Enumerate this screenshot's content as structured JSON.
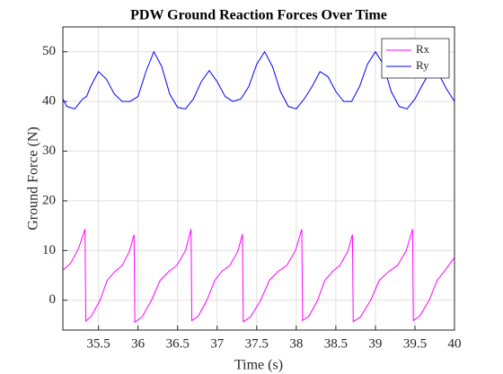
{
  "chart_data": {
    "type": "line",
    "title": "PDW Ground Reaction Forces Over Time",
    "xlabel": "Time (s)",
    "ylabel": "Ground Force (N)",
    "xlim": [
      35.05,
      40
    ],
    "xticks": [
      35.5,
      36,
      36.5,
      37,
      37.5,
      38,
      38.5,
      39,
      39.5,
      40
    ],
    "ylim": [
      -6,
      55
    ],
    "yticks": [
      0,
      10,
      20,
      30,
      40,
      50
    ],
    "grid": true,
    "legend": "northeast",
    "series": [
      {
        "name": "Rx",
        "color": "#ff00ff",
        "x": [
          35.05,
          35.15,
          35.25,
          35.33,
          35.34,
          35.41,
          35.52,
          35.61,
          35.71,
          35.8,
          35.89,
          35.95,
          35.96,
          36.05,
          36.17,
          36.28,
          36.39,
          36.49,
          36.6,
          36.67,
          36.68,
          36.76,
          36.87,
          36.97,
          37.06,
          37.16,
          37.26,
          37.32,
          37.33,
          37.42,
          37.55,
          37.66,
          37.77,
          37.88,
          37.99,
          38.07,
          38.08,
          38.16,
          38.27,
          38.36,
          38.46,
          38.55,
          38.65,
          38.71,
          38.72,
          38.81,
          38.94,
          39.05,
          39.17,
          39.28,
          39.39,
          39.47,
          39.48,
          39.56,
          39.68,
          39.78,
          39.88,
          40
        ],
        "values": [
          6,
          7.5,
          10.5,
          14.3,
          -4.2,
          -3.2,
          0,
          4,
          5.8,
          7,
          9.8,
          13.2,
          -4.4,
          -3.4,
          0,
          4,
          5.8,
          7,
          10,
          14.3,
          -4.1,
          -3.2,
          0,
          4,
          5.8,
          7,
          9.8,
          13.3,
          -4.3,
          -3.4,
          0,
          4,
          5.8,
          7,
          10,
          14.3,
          -4.1,
          -3.2,
          0,
          4,
          5.8,
          7,
          9.8,
          13.2,
          -4.3,
          -3.4,
          0,
          4,
          5.8,
          7,
          10,
          14.3,
          -4.1,
          -3.2,
          0,
          4,
          6,
          8.6
        ]
      },
      {
        "name": "Ry",
        "color": "#0000ff",
        "x": [
          35.05,
          35.1,
          35.2,
          35.3,
          35.35,
          35.4,
          35.5,
          35.6,
          35.7,
          35.8,
          35.9,
          36.0,
          36.1,
          36.2,
          36.3,
          36.4,
          36.5,
          36.6,
          36.7,
          36.8,
          36.9,
          37.0,
          37.1,
          37.2,
          37.3,
          37.4,
          37.5,
          37.6,
          37.7,
          37.8,
          37.9,
          38.0,
          38.1,
          38.2,
          38.3,
          38.4,
          38.5,
          38.6,
          38.7,
          38.8,
          38.9,
          39.0,
          39.1,
          39.2,
          39.3,
          39.4,
          39.5,
          39.6,
          39.7,
          39.8,
          39.9,
          40.0
        ],
        "values": [
          40.5,
          39,
          38.5,
          40.5,
          41,
          43,
          46,
          44.5,
          41.5,
          40,
          40,
          41,
          46,
          50,
          47,
          41.5,
          38.8,
          38.5,
          40.5,
          44,
          46.2,
          44,
          41,
          40,
          40.5,
          43,
          47.5,
          50,
          47,
          42,
          39,
          38.5,
          40.5,
          43,
          46,
          45,
          42,
          40,
          40,
          43,
          47.5,
          50,
          47.5,
          42,
          39,
          38.5,
          40.5,
          43.5,
          46.3,
          45.5,
          42.5,
          40
        ]
      }
    ]
  }
}
